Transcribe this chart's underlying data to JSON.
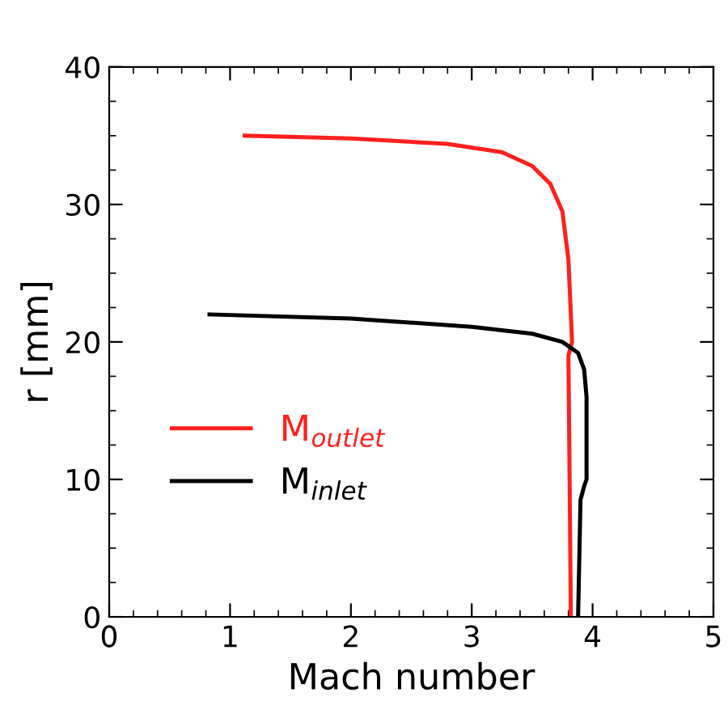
{
  "chart_data": {
    "type": "line",
    "xlabel": "Mach number",
    "ylabel": "r [mm]",
    "xlim": [
      0,
      5
    ],
    "ylim": [
      0,
      40
    ],
    "xticks": [
      0,
      {
        "value": 0.2,
        "label": null
      },
      {
        "value": 0.4,
        "label": null
      },
      {
        "value": 0.6,
        "label": null
      },
      {
        "value": 0.8,
        "label": null
      },
      1,
      {
        "value": 1.2,
        "label": null
      },
      {
        "value": 1.4,
        "label": null
      },
      {
        "value": 1.6,
        "label": null
      },
      {
        "value": 1.8,
        "label": null
      },
      2,
      {
        "value": 2.2,
        "label": null
      },
      {
        "value": 2.4,
        "label": null
      },
      {
        "value": 2.6,
        "label": null
      },
      {
        "value": 2.8,
        "label": null
      },
      3,
      {
        "value": 3.2,
        "label": null
      },
      {
        "value": 3.4,
        "label": null
      },
      {
        "value": 3.6,
        "label": null
      },
      {
        "value": 3.8,
        "label": null
      },
      4,
      {
        "value": 4.2,
        "label": null
      },
      {
        "value": 4.4,
        "label": null
      },
      {
        "value": 4.6,
        "label": null
      },
      {
        "value": 4.8,
        "label": null
      },
      5
    ],
    "yticks": [
      0,
      {
        "value": 2.5,
        "label": null
      },
      {
        "value": 5,
        "label": null
      },
      {
        "value": 7.5,
        "label": null
      },
      10,
      {
        "value": 12.5,
        "label": null
      },
      {
        "value": 15,
        "label": null
      },
      {
        "value": 17.5,
        "label": null
      },
      20,
      {
        "value": 22.5,
        "label": null
      },
      {
        "value": 25,
        "label": null
      },
      {
        "value": 27.5,
        "label": null
      },
      30,
      {
        "value": 32.5,
        "label": null
      },
      {
        "value": 35,
        "label": null
      },
      {
        "value": 37.5,
        "label": null
      },
      40
    ],
    "legend": "left",
    "grid": false,
    "marker": "none",
    "line_style": "solid",
    "series": [
      {
        "name": "M$_{outlet}$",
        "color": "#ff2020",
        "x": [
          1.12,
          2.0,
          2.8,
          3.25,
          3.5,
          3.65,
          3.75,
          3.8,
          3.83,
          3.8,
          3.81,
          3.82
        ],
        "values": [
          35,
          34.8,
          34.4,
          33.8,
          32.8,
          31.5,
          29.5,
          26,
          20,
          19,
          10,
          0
        ]
      },
      {
        "name": "M$_{inlet}$",
        "color": "#000000",
        "x": [
          0.83,
          2.0,
          3.0,
          3.5,
          3.75,
          3.88,
          3.93,
          3.95,
          3.95,
          3.93,
          3.9,
          3.88
        ],
        "values": [
          22,
          21.7,
          21.1,
          20.6,
          20,
          19.2,
          18,
          16,
          10,
          9.5,
          8.5,
          0
        ]
      }
    ]
  }
}
